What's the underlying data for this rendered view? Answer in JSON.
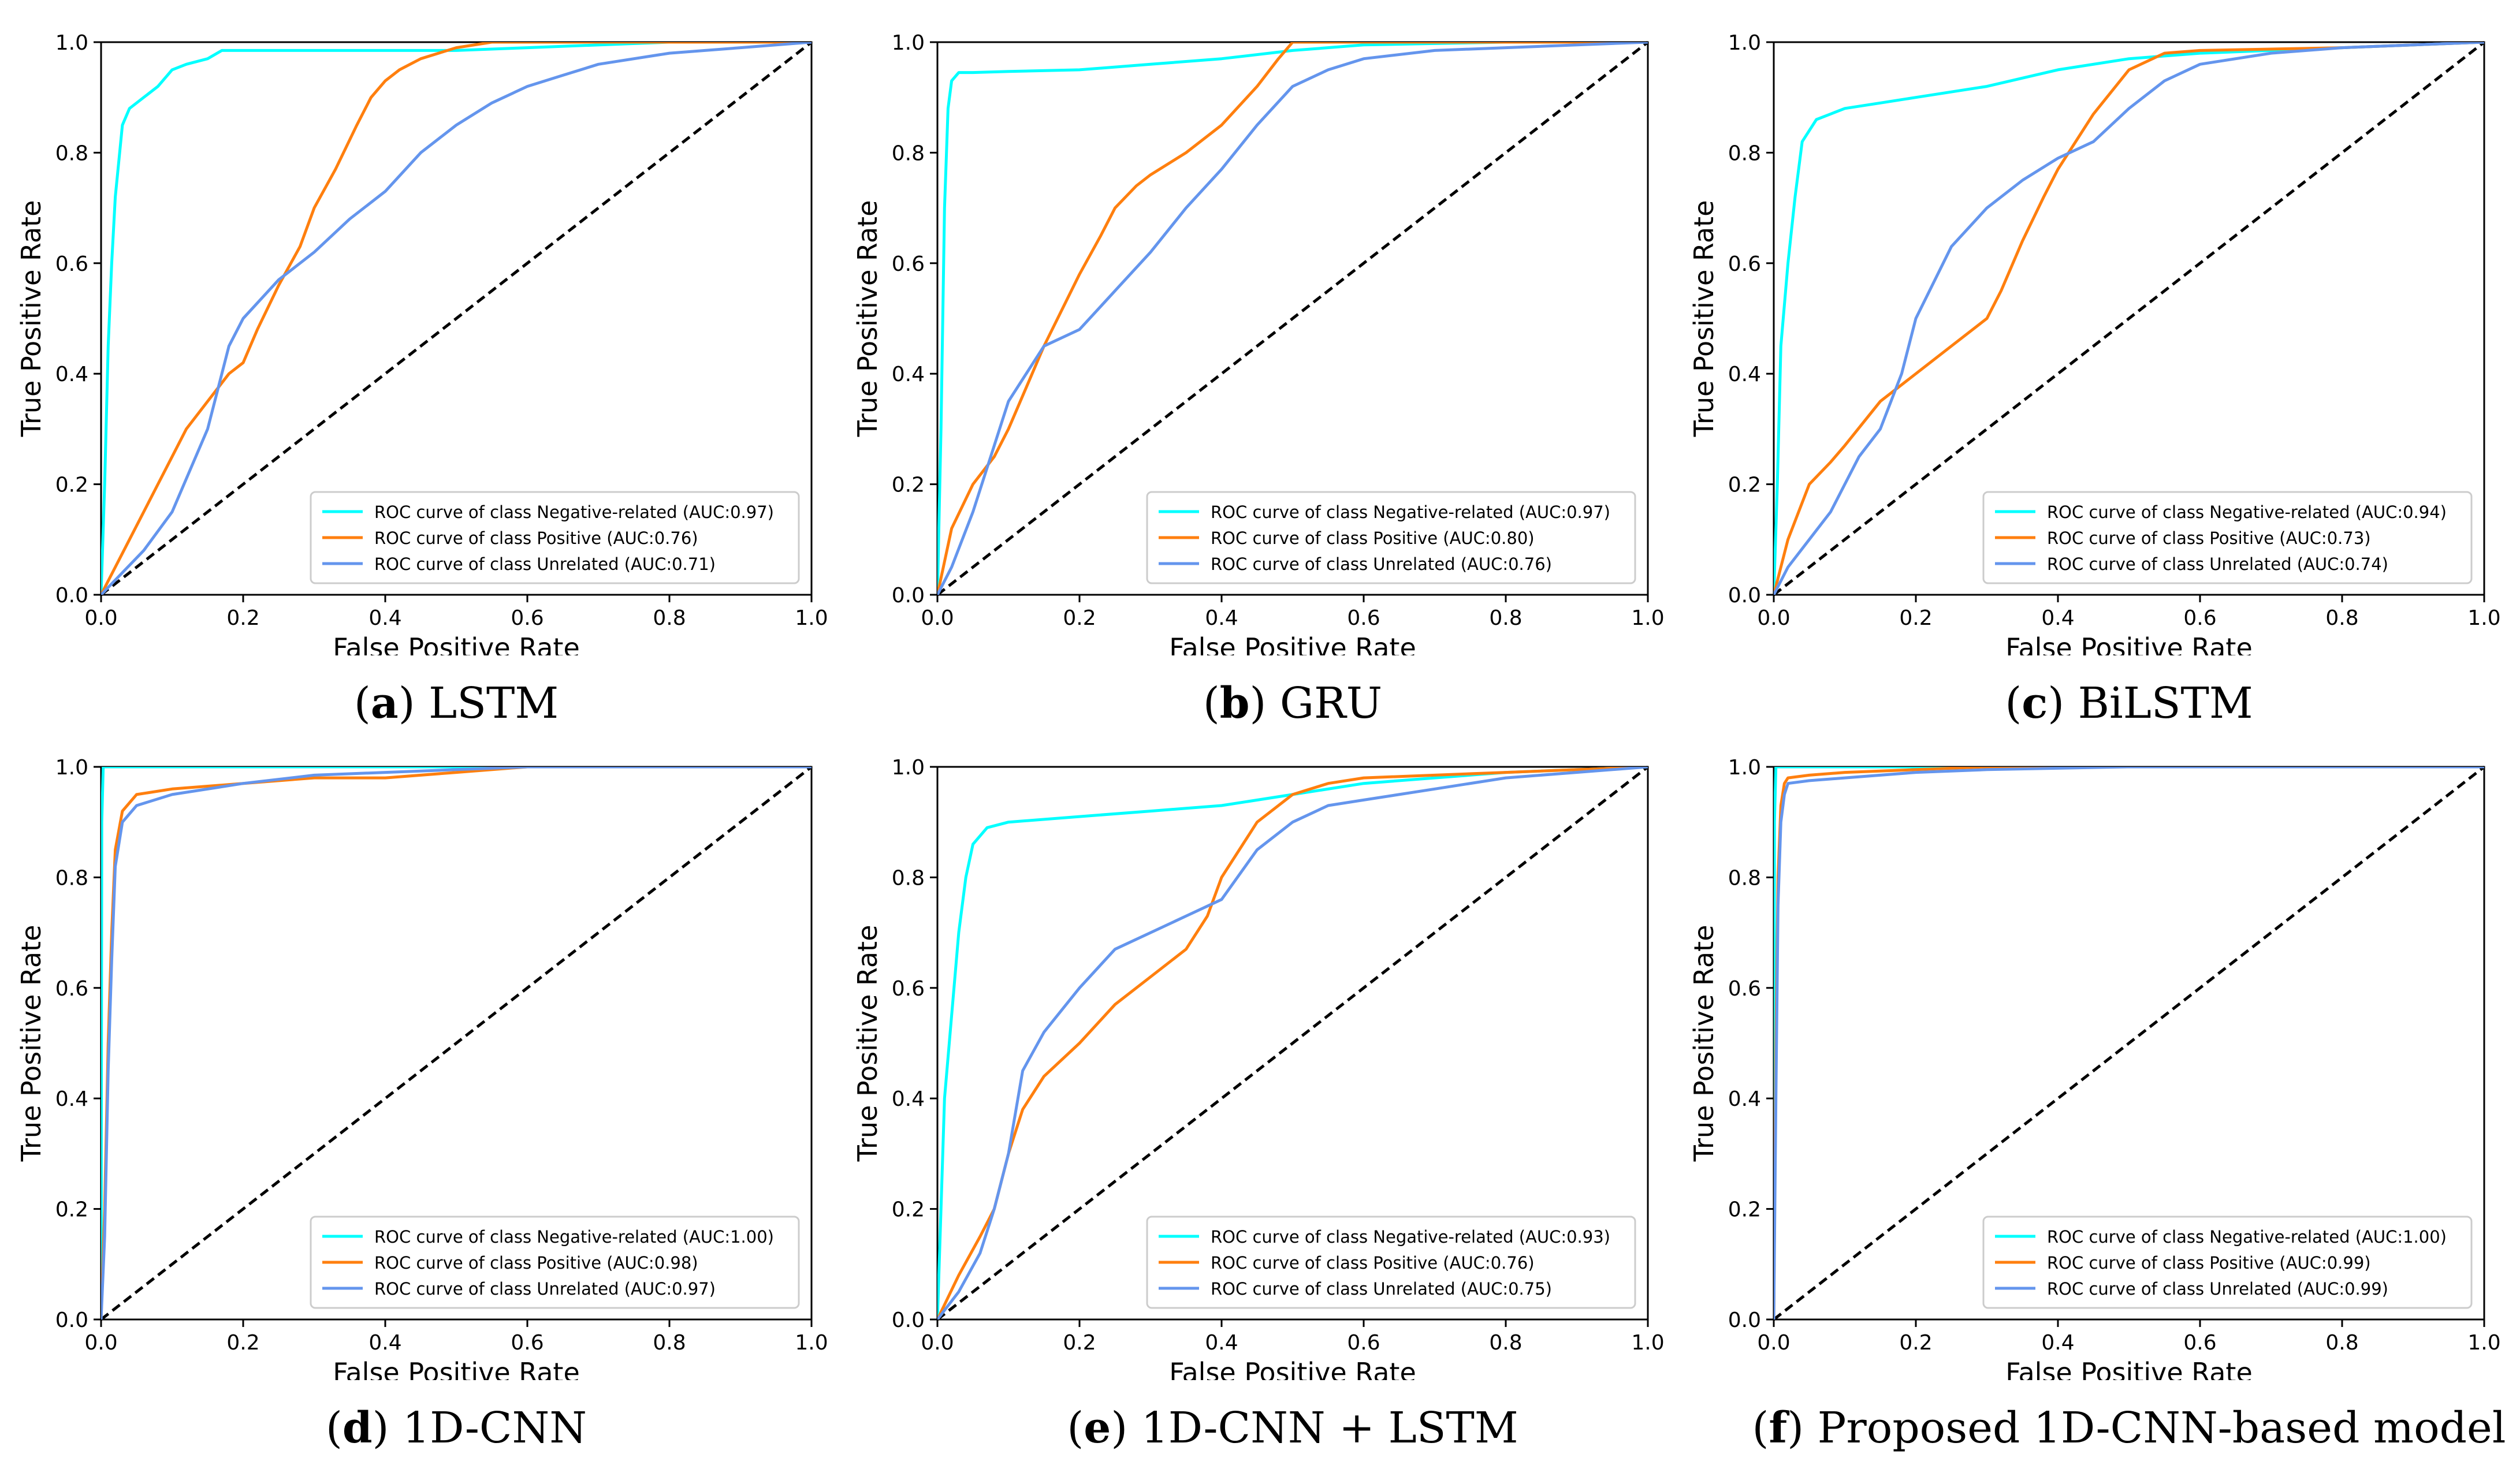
{
  "colors": {
    "negative_related": "#00ffff",
    "positive": "#ff7f0e",
    "unrelated": "#6495ed",
    "diagonal": "#000000"
  },
  "common": {
    "xlabel": "False Positive Rate",
    "ylabel": "True Positive Rate",
    "xticks": [
      "0.0",
      "0.2",
      "0.4",
      "0.6",
      "0.8",
      "1.0"
    ],
    "yticks": [
      "0.0",
      "0.2",
      "0.4",
      "0.6",
      "0.8",
      "1.0"
    ]
  },
  "chart_data": [
    {
      "type": "line",
      "caption_letter": "a",
      "caption_rest": ") LSTM",
      "xlabel": "False Positive Rate",
      "ylabel": "True Positive Rate",
      "xlim": [
        0,
        1
      ],
      "ylim": [
        0,
        1
      ],
      "grid": false,
      "legend_position": "lower-right",
      "series": [
        {
          "name": "ROC curve of class Negative-related (AUC:0.97)",
          "x": [
            0,
            0.005,
            0.01,
            0.015,
            0.02,
            0.03,
            0.04,
            0.06,
            0.08,
            0.1,
            0.12,
            0.15,
            0.17,
            0.2,
            0.3,
            0.4,
            0.5,
            0.6,
            0.8,
            1.0
          ],
          "y": [
            0,
            0.2,
            0.45,
            0.6,
            0.72,
            0.85,
            0.88,
            0.9,
            0.92,
            0.95,
            0.96,
            0.97,
            0.985,
            0.985,
            0.985,
            0.985,
            0.985,
            0.99,
            1.0,
            1.0
          ]
        },
        {
          "name": "ROC curve of class Positive (AUC:0.76)",
          "x": [
            0,
            0.02,
            0.04,
            0.06,
            0.08,
            0.1,
            0.12,
            0.15,
            0.18,
            0.2,
            0.22,
            0.25,
            0.28,
            0.3,
            0.33,
            0.36,
            0.38,
            0.4,
            0.42,
            0.45,
            0.5,
            0.55,
            0.6,
            0.7,
            0.8,
            1.0
          ],
          "y": [
            0,
            0.05,
            0.1,
            0.15,
            0.2,
            0.25,
            0.3,
            0.35,
            0.4,
            0.42,
            0.48,
            0.56,
            0.63,
            0.7,
            0.77,
            0.85,
            0.9,
            0.93,
            0.95,
            0.97,
            0.99,
            1.0,
            1.0,
            1.0,
            1.0,
            1.0
          ]
        },
        {
          "name": "ROC curve of class Unrelated (AUC:0.71)",
          "x": [
            0,
            0.03,
            0.06,
            0.1,
            0.15,
            0.18,
            0.2,
            0.25,
            0.3,
            0.35,
            0.4,
            0.45,
            0.5,
            0.55,
            0.6,
            0.65,
            0.7,
            0.8,
            0.9,
            1.0
          ],
          "y": [
            0,
            0.04,
            0.08,
            0.15,
            0.3,
            0.45,
            0.5,
            0.57,
            0.62,
            0.68,
            0.73,
            0.8,
            0.85,
            0.89,
            0.92,
            0.94,
            0.96,
            0.98,
            0.99,
            1.0
          ]
        }
      ]
    },
    {
      "type": "line",
      "caption_letter": "b",
      "caption_rest": ") GRU",
      "xlabel": "False Positive Rate",
      "ylabel": "True Positive Rate",
      "xlim": [
        0,
        1
      ],
      "ylim": [
        0,
        1
      ],
      "grid": false,
      "legend_position": "lower-right",
      "series": [
        {
          "name": "ROC curve of class Negative-related (AUC:0.97)",
          "x": [
            0,
            0.005,
            0.01,
            0.015,
            0.02,
            0.03,
            0.05,
            0.1,
            0.2,
            0.3,
            0.4,
            0.5,
            0.6,
            0.8,
            1.0
          ],
          "y": [
            0,
            0.3,
            0.7,
            0.88,
            0.93,
            0.945,
            0.945,
            0.947,
            0.95,
            0.96,
            0.97,
            0.985,
            0.995,
            1.0,
            1.0
          ]
        },
        {
          "name": "ROC curve of class Positive (AUC:0.80)",
          "x": [
            0,
            0.02,
            0.05,
            0.08,
            0.1,
            0.12,
            0.15,
            0.2,
            0.23,
            0.25,
            0.28,
            0.3,
            0.35,
            0.4,
            0.45,
            0.48,
            0.5,
            0.6,
            0.8,
            1.0
          ],
          "y": [
            0,
            0.12,
            0.2,
            0.25,
            0.3,
            0.36,
            0.45,
            0.58,
            0.65,
            0.7,
            0.74,
            0.76,
            0.8,
            0.85,
            0.92,
            0.97,
            1.0,
            1.0,
            1.0,
            1.0
          ]
        },
        {
          "name": "ROC curve of class Unrelated (AUC:0.76)",
          "x": [
            0,
            0.02,
            0.05,
            0.08,
            0.1,
            0.15,
            0.2,
            0.25,
            0.3,
            0.35,
            0.4,
            0.45,
            0.5,
            0.55,
            0.6,
            0.7,
            0.8,
            1.0
          ],
          "y": [
            0,
            0.05,
            0.15,
            0.27,
            0.35,
            0.45,
            0.48,
            0.55,
            0.62,
            0.7,
            0.77,
            0.85,
            0.92,
            0.95,
            0.97,
            0.985,
            0.99,
            1.0
          ]
        }
      ]
    },
    {
      "type": "line",
      "caption_letter": "c",
      "caption_rest": ") BiLSTM",
      "xlabel": "False Positive Rate",
      "ylabel": "True Positive Rate",
      "xlim": [
        0,
        1
      ],
      "ylim": [
        0,
        1
      ],
      "grid": false,
      "legend_position": "lower-right",
      "series": [
        {
          "name": "ROC curve of class Negative-related (AUC:0.94)",
          "x": [
            0,
            0.005,
            0.01,
            0.02,
            0.03,
            0.04,
            0.06,
            0.08,
            0.1,
            0.15,
            0.2,
            0.3,
            0.4,
            0.5,
            0.6,
            0.8,
            1.0
          ],
          "y": [
            0,
            0.2,
            0.45,
            0.6,
            0.72,
            0.82,
            0.86,
            0.87,
            0.88,
            0.89,
            0.9,
            0.92,
            0.95,
            0.97,
            0.98,
            0.99,
            1.0
          ]
        },
        {
          "name": "ROC curve of class Positive (AUC:0.73)",
          "x": [
            0,
            0.02,
            0.05,
            0.08,
            0.1,
            0.15,
            0.2,
            0.25,
            0.3,
            0.32,
            0.35,
            0.38,
            0.4,
            0.45,
            0.5,
            0.55,
            0.6,
            0.8,
            1.0
          ],
          "y": [
            0,
            0.1,
            0.2,
            0.24,
            0.27,
            0.35,
            0.4,
            0.45,
            0.5,
            0.55,
            0.64,
            0.72,
            0.77,
            0.87,
            0.95,
            0.98,
            0.985,
            0.99,
            1.0
          ]
        },
        {
          "name": "ROC curve of class Unrelated (AUC:0.74)",
          "x": [
            0,
            0.02,
            0.05,
            0.08,
            0.1,
            0.12,
            0.15,
            0.18,
            0.2,
            0.25,
            0.3,
            0.35,
            0.4,
            0.45,
            0.5,
            0.55,
            0.6,
            0.7,
            0.8,
            1.0
          ],
          "y": [
            0,
            0.05,
            0.1,
            0.15,
            0.2,
            0.25,
            0.3,
            0.4,
            0.5,
            0.63,
            0.7,
            0.75,
            0.79,
            0.82,
            0.88,
            0.93,
            0.96,
            0.98,
            0.99,
            1.0
          ]
        }
      ]
    },
    {
      "type": "line",
      "caption_letter": "d",
      "caption_rest": ") 1D-CNN",
      "xlabel": "False Positive Rate",
      "ylabel": "True Positive Rate",
      "xlim": [
        0,
        1
      ],
      "ylim": [
        0,
        1
      ],
      "grid": false,
      "legend_position": "lower-right",
      "series": [
        {
          "name": "ROC curve of class Negative-related (AUC:1.00)",
          "x": [
            0,
            0.001,
            0.003,
            1.0
          ],
          "y": [
            0,
            0.9,
            1.0,
            1.0
          ]
        },
        {
          "name": "ROC curve of class Positive (AUC:0.98)",
          "x": [
            0,
            0.005,
            0.01,
            0.015,
            0.02,
            0.03,
            0.05,
            0.1,
            0.2,
            0.3,
            0.4,
            0.5,
            0.6,
            0.8,
            1.0
          ],
          "y": [
            0,
            0.2,
            0.5,
            0.7,
            0.85,
            0.92,
            0.95,
            0.96,
            0.97,
            0.98,
            0.98,
            0.99,
            1.0,
            1.0,
            1.0
          ]
        },
        {
          "name": "ROC curve of class Unrelated (AUC:0.97)",
          "x": [
            0,
            0.005,
            0.01,
            0.015,
            0.02,
            0.03,
            0.05,
            0.1,
            0.2,
            0.3,
            0.4,
            0.5,
            0.6,
            0.8,
            1.0
          ],
          "y": [
            0,
            0.15,
            0.45,
            0.65,
            0.82,
            0.9,
            0.93,
            0.95,
            0.97,
            0.985,
            0.99,
            0.995,
            1.0,
            1.0,
            1.0
          ]
        }
      ]
    },
    {
      "type": "line",
      "caption_letter": "e",
      "caption_rest": ") 1D-CNN + LSTM",
      "xlabel": "False Positive Rate",
      "ylabel": "True Positive Rate",
      "xlim": [
        0,
        1
      ],
      "ylim": [
        0,
        1
      ],
      "grid": false,
      "legend_position": "lower-right",
      "series": [
        {
          "name": "ROC curve of class Negative-related (AUC:0.93)",
          "x": [
            0,
            0.005,
            0.01,
            0.02,
            0.03,
            0.04,
            0.05,
            0.07,
            0.1,
            0.2,
            0.3,
            0.4,
            0.5,
            0.6,
            0.8,
            1.0
          ],
          "y": [
            0,
            0.2,
            0.4,
            0.55,
            0.7,
            0.8,
            0.86,
            0.89,
            0.9,
            0.91,
            0.92,
            0.93,
            0.95,
            0.97,
            0.99,
            1.0
          ]
        },
        {
          "name": "ROC curve of class Positive (AUC:0.76)",
          "x": [
            0,
            0.03,
            0.06,
            0.08,
            0.1,
            0.12,
            0.15,
            0.2,
            0.25,
            0.3,
            0.35,
            0.38,
            0.4,
            0.43,
            0.45,
            0.5,
            0.55,
            0.6,
            0.8,
            1.0
          ],
          "y": [
            0,
            0.08,
            0.15,
            0.2,
            0.3,
            0.38,
            0.44,
            0.5,
            0.57,
            0.62,
            0.67,
            0.73,
            0.8,
            0.86,
            0.9,
            0.95,
            0.97,
            0.98,
            0.99,
            1.0
          ]
        },
        {
          "name": "ROC curve of class Unrelated (AUC:0.75)",
          "x": [
            0,
            0.03,
            0.06,
            0.08,
            0.1,
            0.12,
            0.15,
            0.2,
            0.25,
            0.3,
            0.35,
            0.4,
            0.45,
            0.5,
            0.55,
            0.6,
            0.7,
            0.8,
            1.0
          ],
          "y": [
            0,
            0.05,
            0.12,
            0.2,
            0.3,
            0.45,
            0.52,
            0.6,
            0.67,
            0.7,
            0.73,
            0.76,
            0.85,
            0.9,
            0.93,
            0.94,
            0.96,
            0.98,
            1.0
          ]
        }
      ]
    },
    {
      "type": "line",
      "caption_letter": "f",
      "caption_rest": ") Proposed 1D-CNN-based model",
      "xlabel": "False Positive Rate",
      "ylabel": "True Positive Rate",
      "xlim": [
        0,
        1
      ],
      "ylim": [
        0,
        1
      ],
      "grid": false,
      "legend_position": "lower-right",
      "series": [
        {
          "name": "ROC curve of class Negative-related (AUC:1.00)",
          "x": [
            0,
            0.001,
            0.003,
            1.0
          ],
          "y": [
            0,
            0.9,
            1.0,
            1.0
          ]
        },
        {
          "name": "ROC curve of class Positive (AUC:0.99)",
          "x": [
            0,
            0.003,
            0.006,
            0.01,
            0.015,
            0.02,
            0.05,
            0.1,
            0.2,
            0.3,
            0.55
          ],
          "y": [
            0,
            0.5,
            0.8,
            0.93,
            0.97,
            0.98,
            0.985,
            0.99,
            0.995,
            1.0,
            1.0
          ]
        },
        {
          "name": "ROC curve of class Unrelated (AUC:0.99)",
          "x": [
            0,
            0.003,
            0.006,
            0.01,
            0.015,
            0.02,
            0.05,
            0.1,
            0.2,
            0.3,
            0.5,
            1.0
          ],
          "y": [
            0,
            0.4,
            0.75,
            0.9,
            0.95,
            0.97,
            0.975,
            0.98,
            0.99,
            0.995,
            1.0,
            1.0
          ]
        }
      ]
    }
  ]
}
